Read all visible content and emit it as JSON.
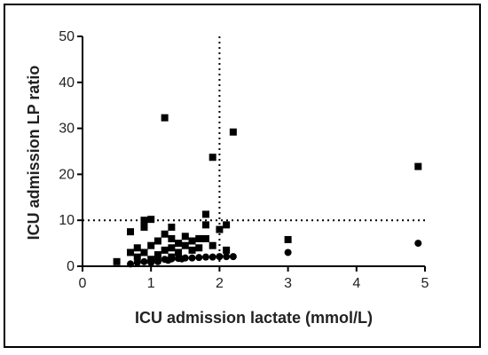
{
  "chart_data": {
    "type": "scatter",
    "xlabel": "ICU admission lactate (mmol/L)",
    "ylabel": "ICU admission LP ratio",
    "xlim": [
      0,
      5
    ],
    "ylim": [
      0,
      50
    ],
    "x_ticks": [
      0,
      1,
      2,
      3,
      4,
      5
    ],
    "y_ticks": [
      0,
      10,
      20,
      30,
      40,
      50
    ],
    "reference_lines": {
      "x": 2,
      "y": 10,
      "style": "dotted"
    },
    "grid": false,
    "series": [
      {
        "marker": "square",
        "points": [
          [
            0.5,
            1.0
          ],
          [
            0.7,
            3.0
          ],
          [
            0.7,
            7.5
          ],
          [
            0.8,
            2.0
          ],
          [
            0.8,
            4.0
          ],
          [
            0.9,
            8.5
          ],
          [
            0.9,
            10.0
          ],
          [
            0.9,
            3.0
          ],
          [
            1.0,
            10.2
          ],
          [
            1.0,
            1.5
          ],
          [
            1.0,
            4.5
          ],
          [
            1.1,
            2.5
          ],
          [
            1.1,
            5.5
          ],
          [
            1.2,
            32.3
          ],
          [
            1.2,
            7.0
          ],
          [
            1.2,
            3.5
          ],
          [
            1.3,
            8.5
          ],
          [
            1.3,
            4.0
          ],
          [
            1.3,
            6.0
          ],
          [
            1.3,
            2.0
          ],
          [
            1.4,
            5.0
          ],
          [
            1.4,
            3.0
          ],
          [
            1.5,
            4.5
          ],
          [
            1.5,
            6.5
          ],
          [
            1.6,
            5.5
          ],
          [
            1.6,
            3.5
          ],
          [
            1.7,
            6.0
          ],
          [
            1.7,
            4.0
          ],
          [
            1.8,
            11.3
          ],
          [
            1.8,
            9.0
          ],
          [
            1.8,
            6.0
          ],
          [
            1.9,
            23.7
          ],
          [
            1.9,
            4.5
          ],
          [
            2.0,
            8.0
          ],
          [
            2.1,
            9.0
          ],
          [
            2.1,
            3.5
          ],
          [
            2.2,
            29.2
          ],
          [
            3.0,
            5.8
          ],
          [
            4.9,
            21.7
          ]
        ]
      },
      {
        "marker": "circle",
        "points": [
          [
            0.7,
            0.5
          ],
          [
            0.8,
            0.8
          ],
          [
            0.9,
            1.0
          ],
          [
            1.0,
            0.8
          ],
          [
            1.0,
            1.2
          ],
          [
            1.1,
            1.0
          ],
          [
            1.1,
            1.4
          ],
          [
            1.2,
            1.5
          ],
          [
            1.3,
            1.6
          ],
          [
            1.4,
            1.7
          ],
          [
            1.5,
            1.8
          ],
          [
            1.6,
            1.8
          ],
          [
            1.7,
            1.9
          ],
          [
            1.8,
            2.0
          ],
          [
            1.9,
            2.0
          ],
          [
            2.0,
            2.1
          ],
          [
            2.1,
            2.1
          ],
          [
            2.2,
            2.1
          ],
          [
            1.25,
            1.3
          ],
          [
            1.45,
            1.6
          ],
          [
            3.0,
            3.0
          ],
          [
            4.9,
            5.0
          ]
        ]
      }
    ]
  }
}
